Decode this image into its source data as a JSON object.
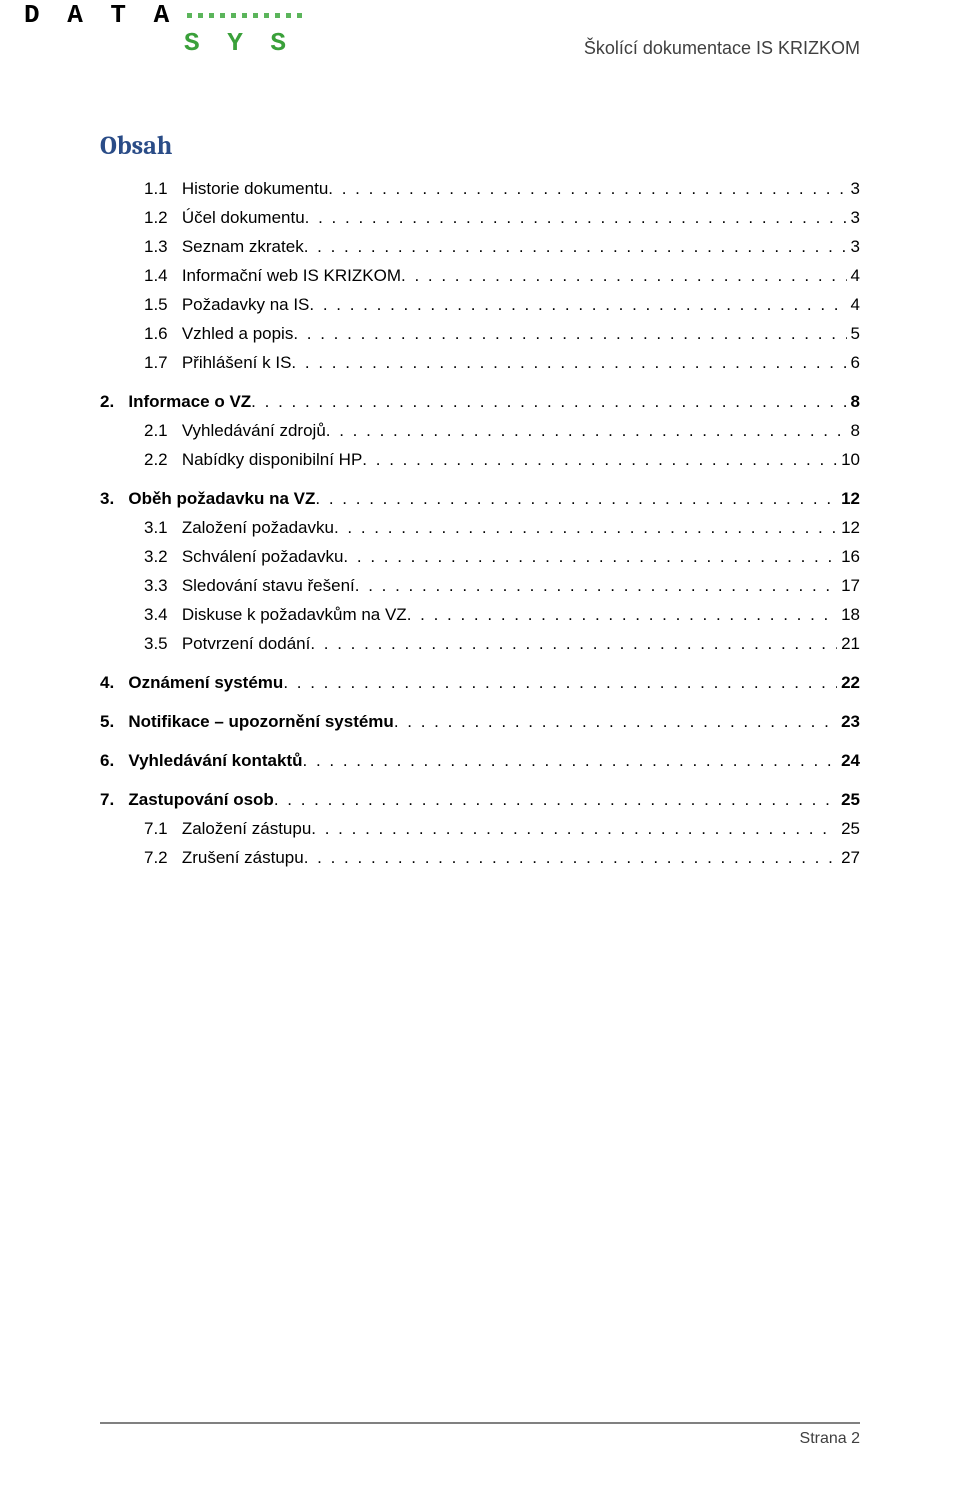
{
  "header": {
    "logo_text_1": "D A T A",
    "logo_text_2": "S Y S",
    "doc_title": "Školící dokumentace IS KRIZKOM"
  },
  "toc": {
    "title": "Obsah",
    "entries": [
      {
        "level": 1,
        "bold": false,
        "num": "1.1",
        "label": "Historie dokumentu",
        "page": "3"
      },
      {
        "level": 1,
        "bold": false,
        "num": "1.2",
        "label": "Účel dokumentu",
        "page": "3"
      },
      {
        "level": 1,
        "bold": false,
        "num": "1.3",
        "label": "Seznam zkratek",
        "page": "3"
      },
      {
        "level": 1,
        "bold": false,
        "num": "1.4",
        "label": "Informační web IS KRIZKOM",
        "page": "4"
      },
      {
        "level": 1,
        "bold": false,
        "num": "1.5",
        "label": "Požadavky na IS",
        "page": "4"
      },
      {
        "level": 1,
        "bold": false,
        "num": "1.6",
        "label": "Vzhled a popis",
        "page": "5"
      },
      {
        "level": 1,
        "bold": false,
        "num": "1.7",
        "label": "Přihlášení k IS",
        "page": "6"
      },
      {
        "level": 0,
        "bold": true,
        "num": "2.",
        "label": "Informace o VZ",
        "page": "8"
      },
      {
        "level": 1,
        "bold": false,
        "num": "2.1",
        "label": "Vyhledávání zdrojů",
        "page": "8"
      },
      {
        "level": 1,
        "bold": false,
        "num": "2.2",
        "label": "Nabídky disponibilní HP",
        "page": "10"
      },
      {
        "level": 0,
        "bold": true,
        "num": "3.",
        "label": "Oběh požadavku na VZ",
        "page": "12"
      },
      {
        "level": 1,
        "bold": false,
        "num": "3.1",
        "label": "Založení požadavku",
        "page": "12"
      },
      {
        "level": 1,
        "bold": false,
        "num": "3.2",
        "label": "Schválení požadavku",
        "page": "16"
      },
      {
        "level": 1,
        "bold": false,
        "num": "3.3",
        "label": "Sledování stavu řešení",
        "page": "17"
      },
      {
        "level": 1,
        "bold": false,
        "num": "3.4",
        "label": "Diskuse k požadavkům na VZ",
        "page": "18"
      },
      {
        "level": 1,
        "bold": false,
        "num": "3.5",
        "label": "Potvrzení dodání",
        "page": "21"
      },
      {
        "level": 0,
        "bold": true,
        "num": "4.",
        "label": "Oznámení systému",
        "page": "22"
      },
      {
        "level": 0,
        "bold": true,
        "num": "5.",
        "label": "Notifikace – upozornění systému",
        "page": "23"
      },
      {
        "level": 0,
        "bold": true,
        "num": "6.",
        "label": "Vyhledávání kontaktů",
        "page": "24"
      },
      {
        "level": 0,
        "bold": true,
        "num": "7.",
        "label": "Zastupování osob",
        "page": "25"
      },
      {
        "level": 1,
        "bold": false,
        "num": "7.1",
        "label": "Založení zástupu",
        "page": "25"
      },
      {
        "level": 1,
        "bold": false,
        "num": "7.2",
        "label": "Zrušení zástupu",
        "page": "27"
      }
    ]
  },
  "footer": {
    "page_label": "Strana 2"
  },
  "style": {
    "title_color": "#2a4c87",
    "body_text_color": "#000000",
    "header_text_color": "#404040",
    "logo_green": "#3aa03a",
    "font_body_size_pt": 13,
    "font_title_size_pt": 20
  }
}
